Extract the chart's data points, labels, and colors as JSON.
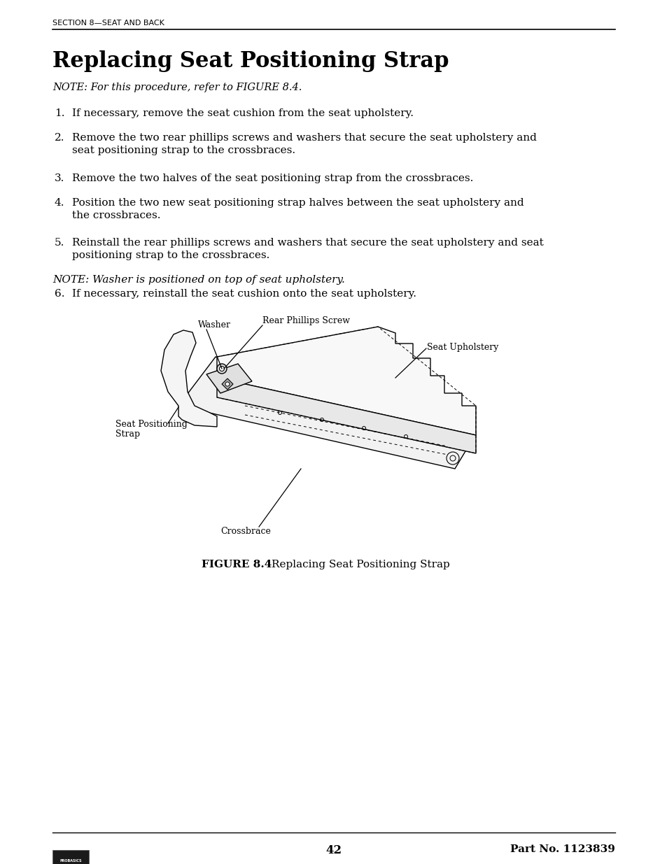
{
  "page_bg": "#ffffff",
  "section_header": "SECTION 8—SEAT AND BACK",
  "title": "Replacing Seat Positioning Strap",
  "note1": "NOTE: For this procedure, refer to FIGURE 8.4.",
  "steps": [
    "If necessary, remove the seat cushion from the seat upholstery.",
    "Remove the two rear phillips screws and washers that secure the seat upholstery and\nseat positioning strap to the crossbraces.",
    "Remove the two halves of the seat positioning strap from the crossbraces.",
    "Position the two new seat positioning strap halves between the seat upholstery and\nthe crossbraces.",
    "Reinstall the rear phillips screws and washers that secure the seat upholstery and seat\npositioning strap to the crossbraces.",
    "If necessary, reinstall the seat cushion onto the seat upholstery."
  ],
  "note2": "NOTE: Washer is positioned on top of seat upholstery.",
  "figure_caption_bold": "FIGURE 8.4",
  "figure_caption_normal": "Replacing Seat Positioning Strap",
  "footer_page": "42",
  "footer_partno": "Part No. 1123839",
  "text_color": "#000000",
  "line_color": "#000000"
}
